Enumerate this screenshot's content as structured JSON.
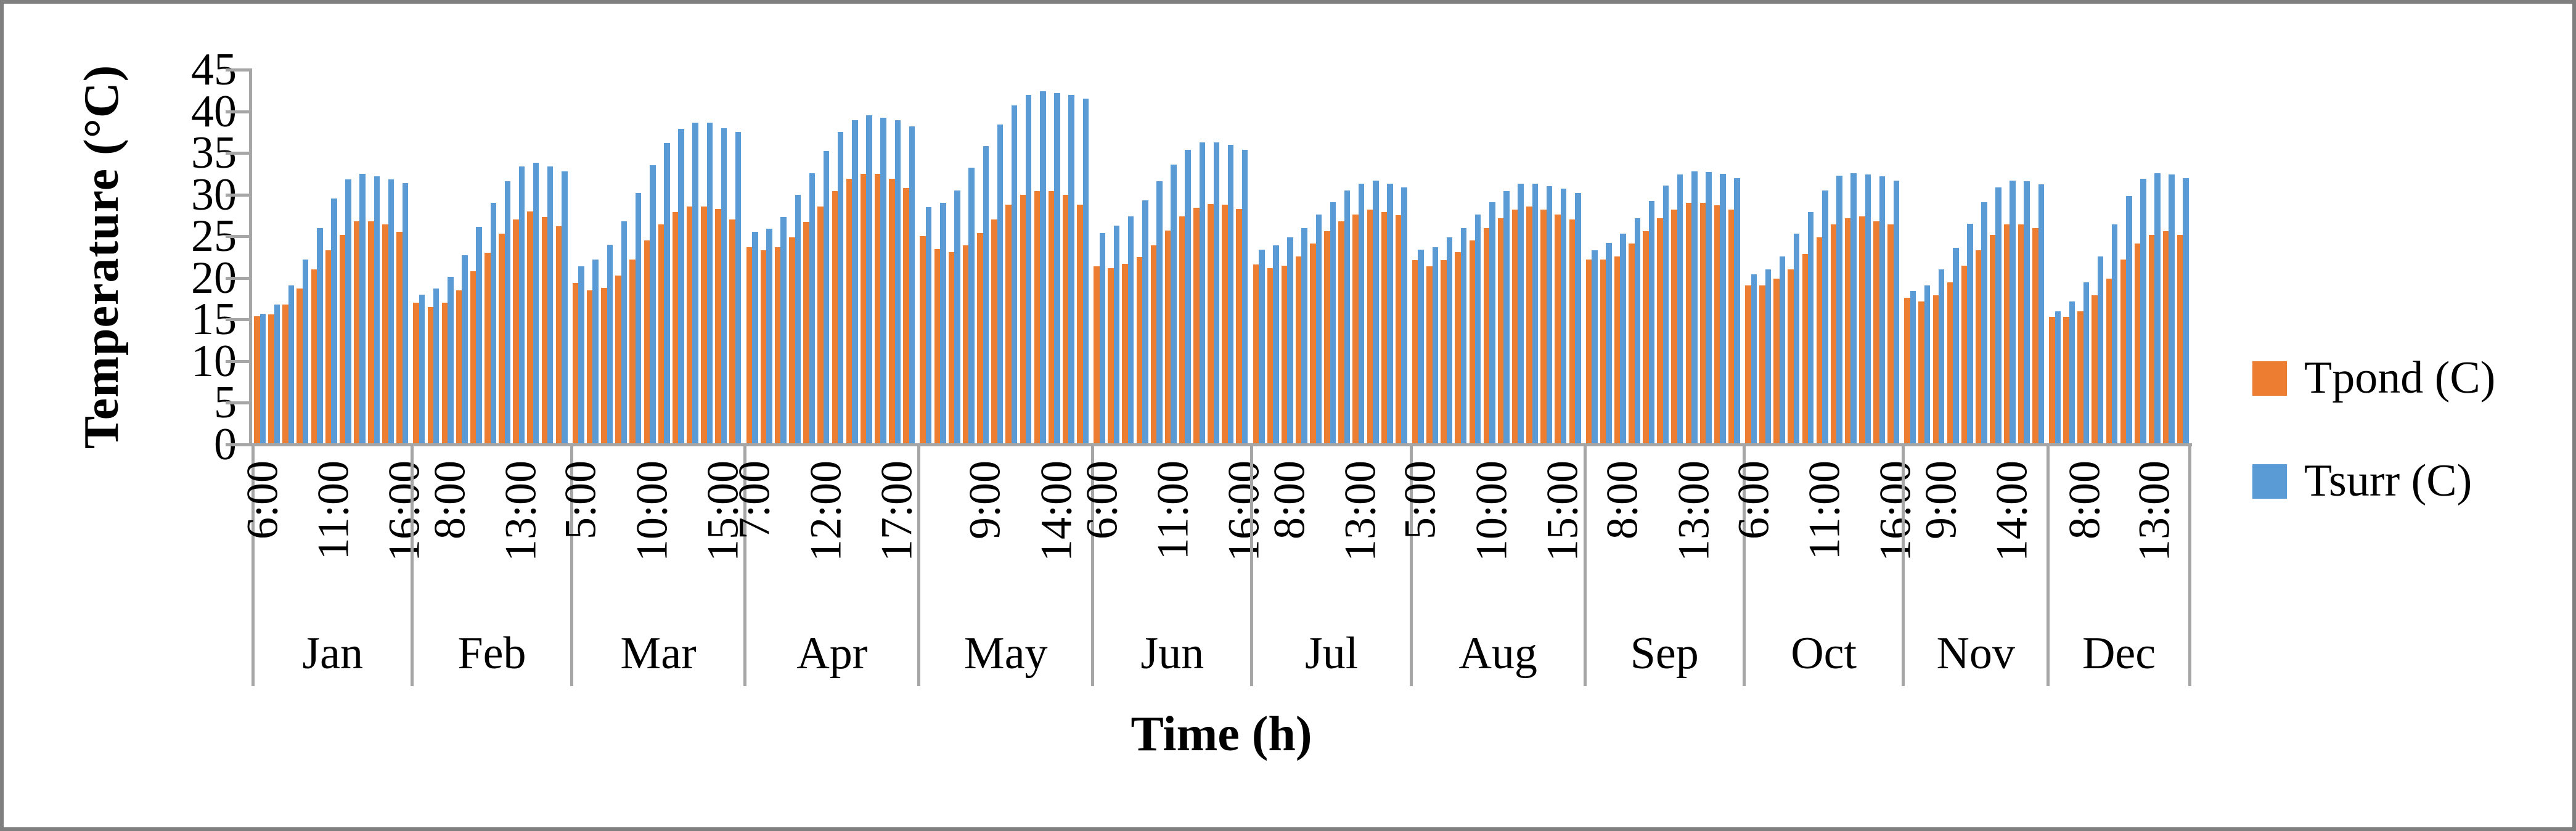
{
  "figure": {
    "background": "#ffffff",
    "border_color": "#7f7f7f",
    "axis_color": "#a6a6a6"
  },
  "y_axis_title": "Temperature (°C)",
  "x_axis_title": "Time (h)",
  "legend": {
    "items": [
      {
        "label": "Tpond (C)",
        "color": "#ed7d31"
      },
      {
        "label": "Tsurr (C)",
        "color": "#5b9bd5"
      }
    ]
  },
  "chart_data": {
    "type": "bar",
    "title": "",
    "xlabel": "Time (h)",
    "ylabel": "Temperature (°C)",
    "ylim": [
      0,
      45
    ],
    "yticks": [
      0,
      5,
      10,
      15,
      20,
      25,
      30,
      35,
      40,
      45
    ],
    "grid": false,
    "legend_position": "right",
    "series_names": [
      "Tpond (C)",
      "Tsurr (C)"
    ],
    "colors": {
      "tpond": "#ed7d31",
      "tsurr": "#5b9bd5"
    },
    "months": [
      {
        "label": "Jan",
        "hours": [
          "6:00",
          "7:00",
          "8:00",
          "9:00",
          "10:00",
          "11:00",
          "12:00",
          "13:00",
          "14:00",
          "15:00",
          "16:00"
        ],
        "tick_labels": [
          {
            "text": "6:00",
            "index": 0
          },
          {
            "text": "11:00",
            "index": 5
          },
          {
            "text": "16:00",
            "index": 10
          }
        ],
        "tpond": [
          15.4,
          15.6,
          16.8,
          18.7,
          21.0,
          23.3,
          25.2,
          26.8,
          26.8,
          26.4,
          25.5
        ],
        "tsurr": [
          15.7,
          16.8,
          19.1,
          22.2,
          26.0,
          29.5,
          31.8,
          32.5,
          32.2,
          31.8,
          31.4
        ]
      },
      {
        "label": "Feb",
        "hours": [
          "6:00",
          "7:00",
          "8:00",
          "9:00",
          "10:00",
          "11:00",
          "12:00",
          "13:00",
          "14:00",
          "15:00",
          "16:00"
        ],
        "tick_labels": [
          {
            "text": "8:00",
            "index": 2
          },
          {
            "text": "13:00",
            "index": 7
          }
        ],
        "tpond": [
          17.0,
          16.5,
          17.0,
          18.5,
          20.8,
          23.0,
          25.3,
          27.0,
          28.0,
          27.3,
          26.2
        ],
        "tsurr": [
          18.0,
          18.7,
          20.1,
          22.7,
          26.1,
          29.0,
          31.6,
          33.4,
          33.8,
          33.4,
          32.8
        ]
      },
      {
        "label": "Mar",
        "hours": [
          "5:00",
          "6:00",
          "7:00",
          "8:00",
          "9:00",
          "10:00",
          "11:00",
          "12:00",
          "13:00",
          "14:00",
          "15:00",
          "16:00"
        ],
        "tick_labels": [
          {
            "text": "5:00",
            "index": 0
          },
          {
            "text": "10:00",
            "index": 5
          },
          {
            "text": "15:00",
            "index": 10
          }
        ],
        "tpond": [
          19.4,
          18.5,
          18.8,
          20.3,
          22.2,
          24.5,
          26.4,
          27.9,
          28.6,
          28.6,
          28.3,
          27.0
        ],
        "tsurr": [
          21.4,
          22.2,
          24.0,
          26.8,
          30.2,
          33.5,
          36.2,
          37.9,
          38.6,
          38.6,
          38.0,
          37.5
        ]
      },
      {
        "label": "Apr",
        "hours": [
          "7:00",
          "8:00",
          "9:00",
          "10:00",
          "11:00",
          "12:00",
          "13:00",
          "14:00",
          "15:00",
          "16:00",
          "17:00",
          "18:00"
        ],
        "tick_labels": [
          {
            "text": "7:00",
            "index": 0
          },
          {
            "text": "12:00",
            "index": 5
          },
          {
            "text": "17:00",
            "index": 10
          }
        ],
        "tpond": [
          23.7,
          23.3,
          23.7,
          24.9,
          26.7,
          28.6,
          30.4,
          31.9,
          32.5,
          32.5,
          31.9,
          30.8
        ],
        "tsurr": [
          25.5,
          25.9,
          27.3,
          30.0,
          32.6,
          35.2,
          37.5,
          38.9,
          39.5,
          39.2,
          38.9,
          38.2
        ]
      },
      {
        "label": "May",
        "hours": [
          "5:00",
          "6:00",
          "7:00",
          "8:00",
          "9:00",
          "10:00",
          "11:00",
          "12:00",
          "13:00",
          "14:00",
          "15:00",
          "16:00"
        ],
        "tick_labels": [
          {
            "text": "9:00",
            "index": 4
          },
          {
            "text": "14:00",
            "index": 9
          }
        ],
        "tpond": [
          25.0,
          23.5,
          23.1,
          23.9,
          25.4,
          27.0,
          28.8,
          30.0,
          30.4,
          30.4,
          30.0,
          28.8
        ],
        "tsurr": [
          28.5,
          29.0,
          30.5,
          33.2,
          35.8,
          38.4,
          40.7,
          42.0,
          42.4,
          42.2,
          42.0,
          41.5
        ]
      },
      {
        "label": "Jun",
        "hours": [
          "6:00",
          "7:00",
          "8:00",
          "9:00",
          "10:00",
          "11:00",
          "12:00",
          "13:00",
          "14:00",
          "15:00",
          "16:00"
        ],
        "tick_labels": [
          {
            "text": "6:00",
            "index": 0
          },
          {
            "text": "11:00",
            "index": 5
          },
          {
            "text": "16:00",
            "index": 10
          }
        ],
        "tpond": [
          21.4,
          21.2,
          21.7,
          22.5,
          23.9,
          25.7,
          27.4,
          28.4,
          28.9,
          28.8,
          28.3
        ],
        "tsurr": [
          25.4,
          26.3,
          27.4,
          29.3,
          31.6,
          33.6,
          35.4,
          36.3,
          36.3,
          36.0,
          35.4
        ]
      },
      {
        "label": "Jul",
        "hours": [
          "6:00",
          "7:00",
          "8:00",
          "9:00",
          "10:00",
          "11:00",
          "12:00",
          "13:00",
          "14:00",
          "15:00",
          "16:00"
        ],
        "tick_labels": [
          {
            "text": "8:00",
            "index": 2
          },
          {
            "text": "13:00",
            "index": 7
          }
        ],
        "tpond": [
          21.6,
          21.2,
          21.5,
          22.6,
          24.1,
          25.6,
          26.8,
          27.6,
          28.2,
          27.9,
          27.5
        ],
        "tsurr": [
          23.4,
          23.9,
          24.9,
          26.0,
          27.6,
          29.1,
          30.5,
          31.3,
          31.7,
          31.3,
          30.9
        ]
      },
      {
        "label": "Aug",
        "hours": [
          "5:00",
          "6:00",
          "7:00",
          "8:00",
          "9:00",
          "10:00",
          "11:00",
          "12:00",
          "13:00",
          "14:00",
          "15:00",
          "16:00"
        ],
        "tick_labels": [
          {
            "text": "5:00",
            "index": 0
          },
          {
            "text": "10:00",
            "index": 5
          },
          {
            "text": "15:00",
            "index": 10
          }
        ],
        "tpond": [
          22.1,
          21.4,
          22.1,
          23.1,
          24.5,
          26.0,
          27.2,
          28.2,
          28.6,
          28.2,
          27.6,
          27.0
        ],
        "tsurr": [
          23.4,
          23.7,
          24.9,
          26.0,
          27.6,
          29.1,
          30.4,
          31.3,
          31.3,
          31.0,
          30.7,
          30.2
        ]
      },
      {
        "label": "Sep",
        "hours": [
          "6:00",
          "7:00",
          "8:00",
          "9:00",
          "10:00",
          "11:00",
          "12:00",
          "13:00",
          "14:00",
          "15:00",
          "16:00"
        ],
        "tick_labels": [
          {
            "text": "8:00",
            "index": 2
          },
          {
            "text": "13:00",
            "index": 7
          }
        ],
        "tpond": [
          22.2,
          22.2,
          22.6,
          24.1,
          25.6,
          27.2,
          28.2,
          29.0,
          29.0,
          28.7,
          28.2
        ],
        "tsurr": [
          23.3,
          24.2,
          25.3,
          27.2,
          29.2,
          31.1,
          32.4,
          32.8,
          32.7,
          32.5,
          32.0
        ]
      },
      {
        "label": "Oct",
        "hours": [
          "6:00",
          "7:00",
          "8:00",
          "9:00",
          "10:00",
          "11:00",
          "12:00",
          "13:00",
          "14:00",
          "15:00",
          "16:00"
        ],
        "tick_labels": [
          {
            "text": "6:00",
            "index": 0
          },
          {
            "text": "11:00",
            "index": 5
          },
          {
            "text": "16:00",
            "index": 10
          }
        ],
        "tpond": [
          19.1,
          19.1,
          19.9,
          21.0,
          22.9,
          24.9,
          26.4,
          27.2,
          27.4,
          26.8,
          26.4
        ],
        "tsurr": [
          20.4,
          21.0,
          22.6,
          25.3,
          27.9,
          30.5,
          32.3,
          32.6,
          32.4,
          32.2,
          31.7
        ]
      },
      {
        "label": "Nov",
        "hours": [
          "7:00",
          "8:00",
          "9:00",
          "10:00",
          "11:00",
          "12:00",
          "13:00",
          "14:00",
          "15:00",
          "16:00"
        ],
        "tick_labels": [
          {
            "text": "9:00",
            "index": 2
          },
          {
            "text": "14:00",
            "index": 7
          }
        ],
        "tpond": [
          17.6,
          17.2,
          17.9,
          19.5,
          21.5,
          23.3,
          25.2,
          26.4,
          26.4,
          26.0
        ],
        "tsurr": [
          18.4,
          19.1,
          21.0,
          23.6,
          26.5,
          29.1,
          30.9,
          31.7,
          31.6,
          31.2
        ]
      },
      {
        "label": "Dec",
        "hours": [
          "6:00",
          "7:00",
          "8:00",
          "9:00",
          "10:00",
          "11:00",
          "12:00",
          "13:00",
          "14:00",
          "15:00"
        ],
        "tick_labels": [
          {
            "text": "8:00",
            "index": 2
          },
          {
            "text": "13:00",
            "index": 7
          }
        ],
        "tpond": [
          15.3,
          15.3,
          16.0,
          17.9,
          19.9,
          22.2,
          24.1,
          25.2,
          25.6,
          25.2
        ],
        "tsurr": [
          16.0,
          17.2,
          19.5,
          22.6,
          26.4,
          29.8,
          31.9,
          32.6,
          32.4,
          32.0
        ]
      }
    ]
  }
}
